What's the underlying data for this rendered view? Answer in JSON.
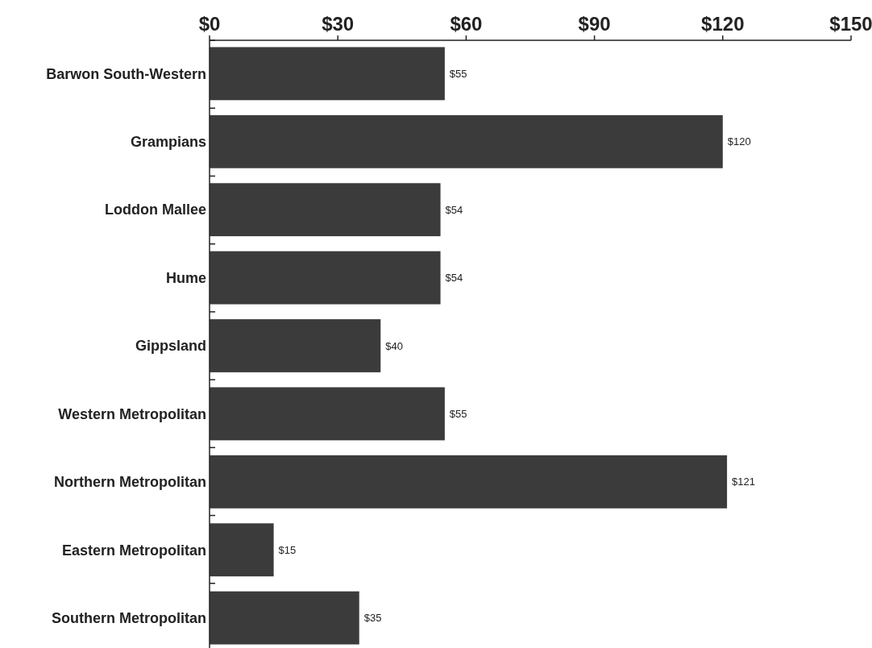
{
  "chart_data": {
    "type": "bar",
    "orientation": "horizontal",
    "categories": [
      "Barwon South-Western",
      "Grampians",
      "Loddon Mallee",
      "Hume",
      "Gippsland",
      "Western Metropolitan",
      "Northern Metropolitan",
      "Eastern Metropolitan",
      "Southern Metropolitan"
    ],
    "values": [
      55,
      120,
      54,
      54,
      40,
      55,
      121,
      15,
      35
    ],
    "value_labels": [
      "$55",
      "$120",
      "$54",
      "$54",
      "$40",
      "$55",
      "$121",
      "$15",
      "$35"
    ],
    "color": "#3b3b3b",
    "xlim": [
      0,
      150
    ],
    "xticks": [
      {
        "value": 0,
        "label": "$0"
      },
      {
        "value": 30,
        "label": "$30"
      },
      {
        "value": 60,
        "label": "$60"
      },
      {
        "value": 90,
        "label": "$90"
      },
      {
        "value": 120,
        "label": "$120"
      },
      {
        "value": 150,
        "label": "$150"
      }
    ],
    "grid": false
  }
}
